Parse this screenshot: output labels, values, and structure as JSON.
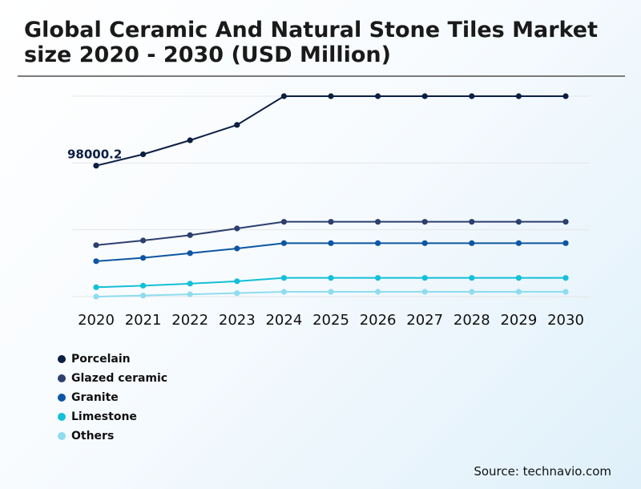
{
  "title": "Global Ceramic And Natural Stone Tiles Market size 2020 - 2030 (USD Million)",
  "source": "Source: technavio.com",
  "colors": {
    "porcelain": "#0b1e43",
    "glazed": "#2c3f6e",
    "granite": "#0d56a3",
    "limestone": "#14bfd8",
    "others": "#8fdcef",
    "grid": "#e6e6e6"
  },
  "chart_data": {
    "type": "line",
    "title": "Global Ceramic And Natural Stone Tiles Market size 2020 - 2030 (USD Million)",
    "xlabel": "",
    "ylabel": "",
    "grid": true,
    "legend_position": "bottom-left",
    "categories": [
      "2020",
      "2021",
      "2022",
      "2023",
      "2024",
      "2025",
      "2026",
      "2027",
      "2028",
      "2029",
      "2030"
    ],
    "ylim": [
      0,
      150000
    ],
    "series": [
      {
        "name": "Porcelain",
        "values": [
          98000.2,
          106500,
          117000,
          128500,
          150000,
          150000,
          150000,
          150000,
          150000,
          150000,
          150000
        ]
      },
      {
        "name": "Glazed ceramic",
        "values": [
          38500,
          42000,
          46000,
          51000,
          56000,
          56000,
          56000,
          56000,
          56000,
          56000,
          56000
        ]
      },
      {
        "name": "Granite",
        "values": [
          26500,
          29000,
          32500,
          36000,
          40000,
          40000,
          40000,
          40000,
          40000,
          40000,
          40000
        ]
      },
      {
        "name": "Limestone",
        "values": [
          7000,
          8200,
          9700,
          11500,
          14000,
          14000,
          14000,
          14000,
          14000,
          14000,
          14000
        ]
      },
      {
        "name": "Others",
        "values": [
          0,
          800,
          1700,
          2600,
          3600,
          3600,
          3600,
          3600,
          3600,
          3600,
          3600
        ]
      }
    ],
    "annotations": [
      {
        "series": "Porcelain",
        "category": "2020",
        "text": "98000.2"
      }
    ]
  }
}
